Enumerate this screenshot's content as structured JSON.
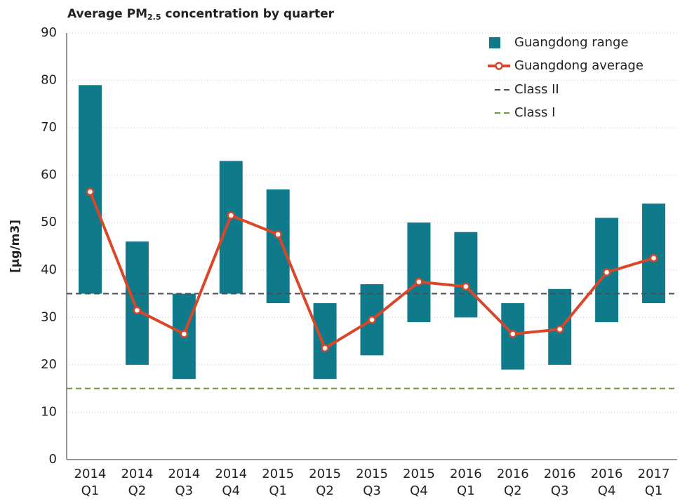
{
  "chart_data": {
    "type": "range_bar_line",
    "title": "Average PM",
    "title_subscript": "2.5",
    "title_rest": "concentration by quarter",
    "y_label": "[µg/m3]",
    "categories": [
      [
        "2014",
        "Q1"
      ],
      [
        "2014",
        "Q2"
      ],
      [
        "2014",
        "Q3"
      ],
      [
        "2014",
        "Q4"
      ],
      [
        "2015",
        "Q1"
      ],
      [
        "2015",
        "Q2"
      ],
      [
        "2015",
        "Q3"
      ],
      [
        "2015",
        "Q4"
      ],
      [
        "2016",
        "Q1"
      ],
      [
        "2016",
        "Q2"
      ],
      [
        "2016",
        "Q3"
      ],
      [
        "2016",
        "Q4"
      ],
      [
        "2017",
        "Q1"
      ]
    ],
    "range": {
      "name": "Guangdong range",
      "color": "#0e7a8a",
      "low": [
        35,
        20,
        17,
        35,
        33,
        17,
        22,
        29,
        30,
        19,
        20,
        29,
        33
      ],
      "high": [
        79,
        46,
        35,
        63,
        57,
        33,
        37,
        50,
        48,
        33,
        36,
        51,
        54
      ]
    },
    "average": {
      "name": "Guangdong average",
      "color": "#d9472b",
      "values": [
        56.5,
        31.5,
        26.5,
        51.5,
        47.5,
        23.5,
        29.5,
        37.5,
        36.5,
        26.5,
        27.5,
        39.5,
        42.5
      ]
    },
    "reference_lines": [
      {
        "name": "Class II",
        "value": 35,
        "color": "#4a4f55"
      },
      {
        "name": "Class I",
        "value": 15,
        "color": "#6a9a3a"
      }
    ],
    "ylim": [
      0,
      90
    ],
    "yticks": [
      0,
      10,
      20,
      30,
      40,
      50,
      60,
      70,
      80,
      90
    ],
    "grid": true,
    "legend": "top-right"
  }
}
